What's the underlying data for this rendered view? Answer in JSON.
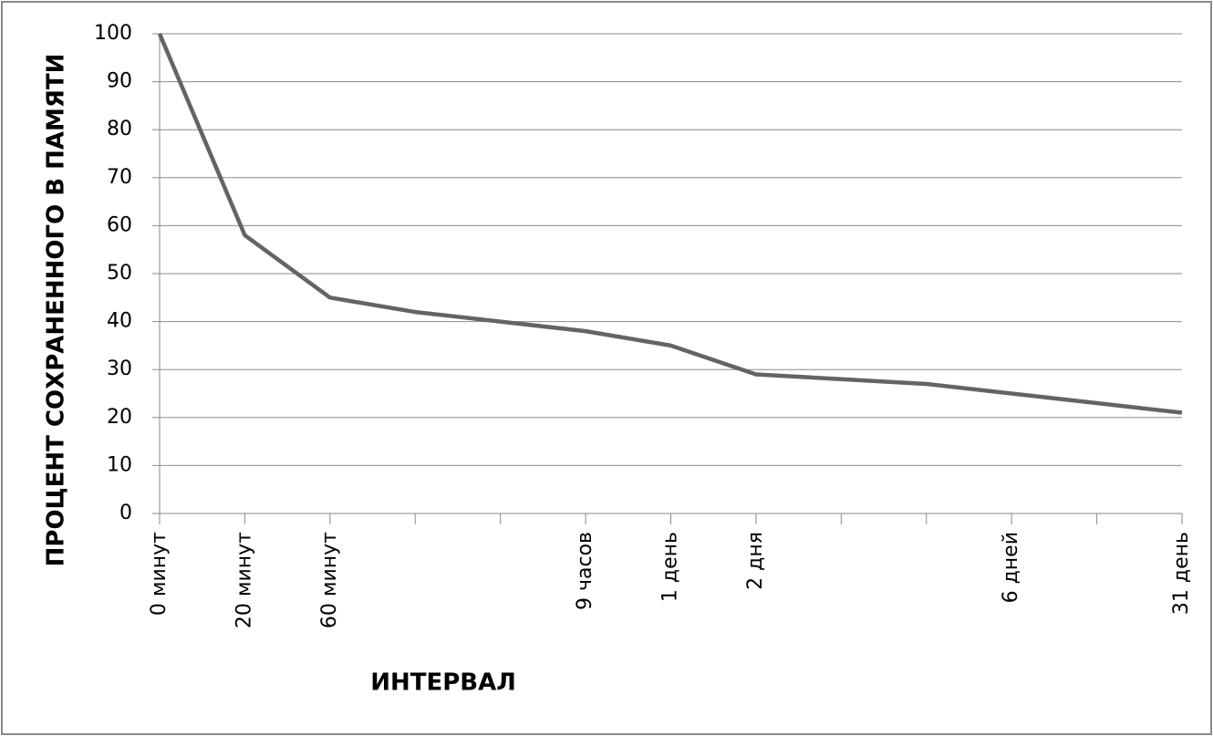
{
  "chart_data": {
    "type": "line",
    "x_label": "ИНТЕРВАЛ",
    "y_label": "ПРОЦЕНТ СОХРАНЕННОГО  В ПАМЯТИ",
    "categories": [
      "0 минут",
      "20 минут",
      "60 минут",
      null,
      null,
      "9 часов",
      "1 день",
      "2 дня",
      null,
      null,
      "6 дней",
      null,
      "31 день"
    ],
    "series": [
      {
        "color": "#646464",
        "values": [
          100,
          58,
          45,
          42,
          40,
          38,
          35,
          29,
          28,
          27,
          25,
          23,
          21
        ]
      }
    ],
    "ylim": [
      0,
      100
    ],
    "yticks": [
      0,
      10,
      20,
      30,
      40,
      50,
      60,
      70,
      80,
      90,
      100
    ],
    "grid": true
  }
}
